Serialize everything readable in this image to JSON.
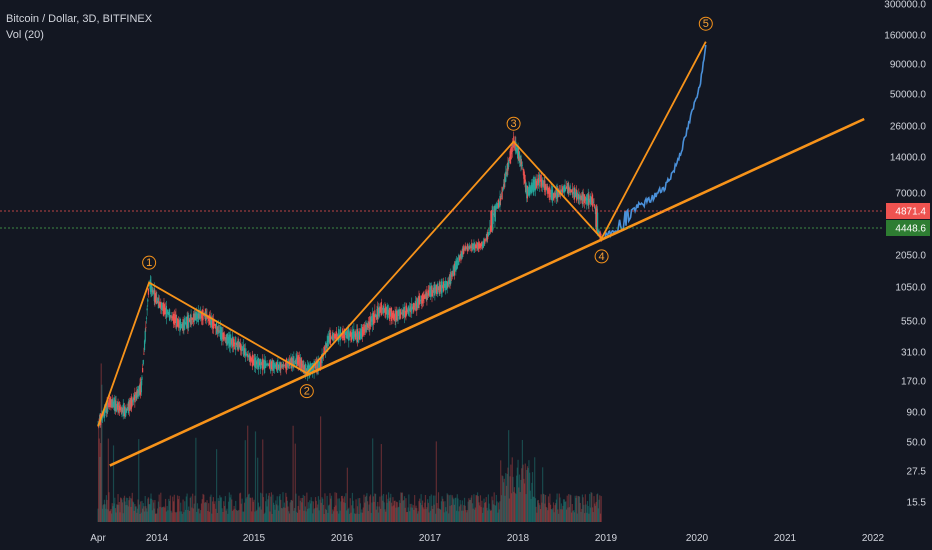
{
  "header": {
    "symbol_line": "Bitcoin / Dollar, 3D, BITFINEX",
    "indicator_line": "Vol (20)"
  },
  "colors": {
    "background": "#131722",
    "text": "#d1d4dc",
    "up": "#26a69a",
    "down": "#ef5350",
    "wave": "#f7931a",
    "projection": "#4a90d9",
    "price_pill": "#ef5350",
    "price_pill_alt": "#2e7d32"
  },
  "chart_data": {
    "type": "candlestick",
    "y_scale": "log",
    "price_ticks": [
      "300000.0",
      "160000.0",
      "90000.0",
      "50000.0",
      "26000.0",
      "14000.0",
      "7000.0",
      "4871.4",
      "4448.6",
      "2050.0",
      "1050.0",
      "550.0",
      "310.0",
      "170.0",
      "90.0"
    ],
    "volume_ticks": [
      "50.0",
      "27.5",
      "15.5"
    ],
    "x_ticks": [
      "Apr",
      "2014",
      "2015",
      "2016",
      "2017",
      "2018",
      "2019",
      "2020",
      "2021",
      "2022"
    ],
    "current_price": "4871.4",
    "alt_price": "4448.6",
    "waves": [
      {
        "label": "1",
        "date": "2013.9",
        "price": 1150
      },
      {
        "label": "2",
        "date": "2015.6",
        "price": 200
      },
      {
        "label": "3",
        "date": "2017.95",
        "price": 19000
      },
      {
        "label": "4",
        "date": "2018.95",
        "price": 3300
      },
      {
        "label": "5",
        "date": "2020.1",
        "price": 140000
      }
    ],
    "wave_start": {
      "date": "2013.25",
      "price": 67
    },
    "trendline": {
      "from": {
        "date": "2013.4",
        "price": 30
      },
      "to": {
        "date": "2021.9",
        "price": 30000
      }
    },
    "price_path": [
      [
        2013.25,
        70
      ],
      [
        2013.4,
        110
      ],
      [
        2013.6,
        90
      ],
      [
        2013.8,
        150
      ],
      [
        2013.9,
        1150
      ],
      [
        2014.0,
        800
      ],
      [
        2014.1,
        650
      ],
      [
        2014.25,
        500
      ],
      [
        2014.4,
        600
      ],
      [
        2014.5,
        620
      ],
      [
        2014.7,
        400
      ],
      [
        2014.85,
        350
      ],
      [
        2015.0,
        250
      ],
      [
        2015.1,
        240
      ],
      [
        2015.3,
        230
      ],
      [
        2015.5,
        260
      ],
      [
        2015.6,
        210
      ],
      [
        2015.75,
        240
      ],
      [
        2015.85,
        400
      ],
      [
        2016.0,
        430
      ],
      [
        2016.2,
        420
      ],
      [
        2016.45,
        700
      ],
      [
        2016.6,
        600
      ],
      [
        2016.8,
        700
      ],
      [
        2017.0,
        960
      ],
      [
        2017.2,
        1100
      ],
      [
        2017.4,
        2500
      ],
      [
        2017.6,
        2700
      ],
      [
        2017.7,
        4500
      ],
      [
        2017.8,
        6000
      ],
      [
        2017.95,
        19000
      ],
      [
        2018.05,
        12000
      ],
      [
        2018.1,
        7000
      ],
      [
        2018.25,
        9000
      ],
      [
        2018.4,
        6500
      ],
      [
        2018.55,
        7800
      ],
      [
        2018.7,
        6400
      ],
      [
        2018.85,
        6000
      ],
      [
        2018.95,
        3300
      ]
    ],
    "projection_path": [
      [
        2018.95,
        3300
      ],
      [
        2019.1,
        4200
      ],
      [
        2019.3,
        5000
      ],
      [
        2019.5,
        6200
      ],
      [
        2019.65,
        8000
      ],
      [
        2019.75,
        11000
      ],
      [
        2019.85,
        18000
      ],
      [
        2019.95,
        35000
      ],
      [
        2020.05,
        70000
      ],
      [
        2020.1,
        140000
      ]
    ]
  }
}
